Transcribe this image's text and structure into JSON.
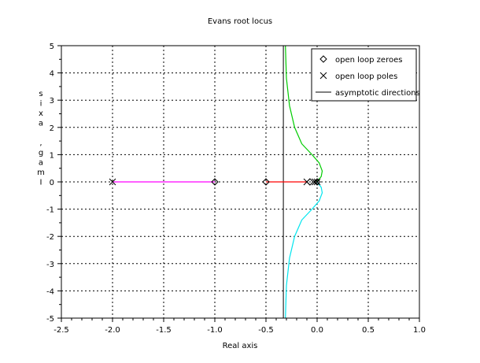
{
  "chart_data": {
    "type": "line",
    "title": "Evans root locus",
    "xlabel": "Real axis",
    "ylabel": "Imag. axis",
    "xlim": [
      -2.5,
      1.0
    ],
    "ylim": [
      -5,
      5
    ],
    "xticks": [
      "-2.5",
      "-2.0",
      "-1.5",
      "-1.0",
      "-0.5",
      "0.0",
      "0.5",
      "1.0"
    ],
    "yticks": [
      "5",
      "4",
      "3",
      "2",
      "1",
      "0",
      "-1",
      "-2",
      "-3",
      "-4",
      "-5"
    ],
    "grid": true,
    "legend_position": "top-right",
    "legend": [
      {
        "label": "open loop zeroes",
        "marker": "diamond"
      },
      {
        "label": "open loop poles",
        "marker": "cross"
      },
      {
        "label": "asymptotic directions",
        "marker": "line"
      }
    ],
    "open_loop_zeroes": [
      [
        -1.0,
        0
      ],
      [
        -0.5,
        0
      ],
      [
        -0.07,
        0
      ],
      [
        0.0,
        0
      ]
    ],
    "open_loop_poles": [
      [
        -2.0,
        0
      ],
      [
        -0.1,
        0
      ],
      [
        -0.02,
        0
      ],
      [
        0.0,
        0
      ]
    ],
    "asymptote_x": -0.33,
    "series": [
      {
        "color": "#ff00ff",
        "points": [
          [
            -2.0,
            0
          ],
          [
            -1.0,
            0
          ]
        ]
      },
      {
        "color": "#ff0000",
        "points": [
          [
            -0.5,
            0
          ],
          [
            -0.1,
            0
          ]
        ]
      },
      {
        "color": "#00cc00",
        "points": [
          [
            0.0,
            0
          ],
          [
            0.04,
            0.2
          ],
          [
            0.05,
            0.4
          ],
          [
            0.02,
            0.7
          ],
          [
            -0.05,
            1.0
          ],
          [
            -0.15,
            1.4
          ],
          [
            -0.22,
            2.0
          ],
          [
            -0.27,
            2.8
          ],
          [
            -0.3,
            3.8
          ],
          [
            -0.31,
            5.0
          ]
        ]
      },
      {
        "color": "#00e5ee",
        "points": [
          [
            0.0,
            0
          ],
          [
            0.04,
            -0.2
          ],
          [
            0.05,
            -0.4
          ],
          [
            0.02,
            -0.7
          ],
          [
            -0.05,
            -1.0
          ],
          [
            -0.15,
            -1.4
          ],
          [
            -0.22,
            -2.0
          ],
          [
            -0.27,
            -2.8
          ],
          [
            -0.3,
            -3.8
          ],
          [
            -0.31,
            -5.0
          ]
        ]
      }
    ]
  }
}
